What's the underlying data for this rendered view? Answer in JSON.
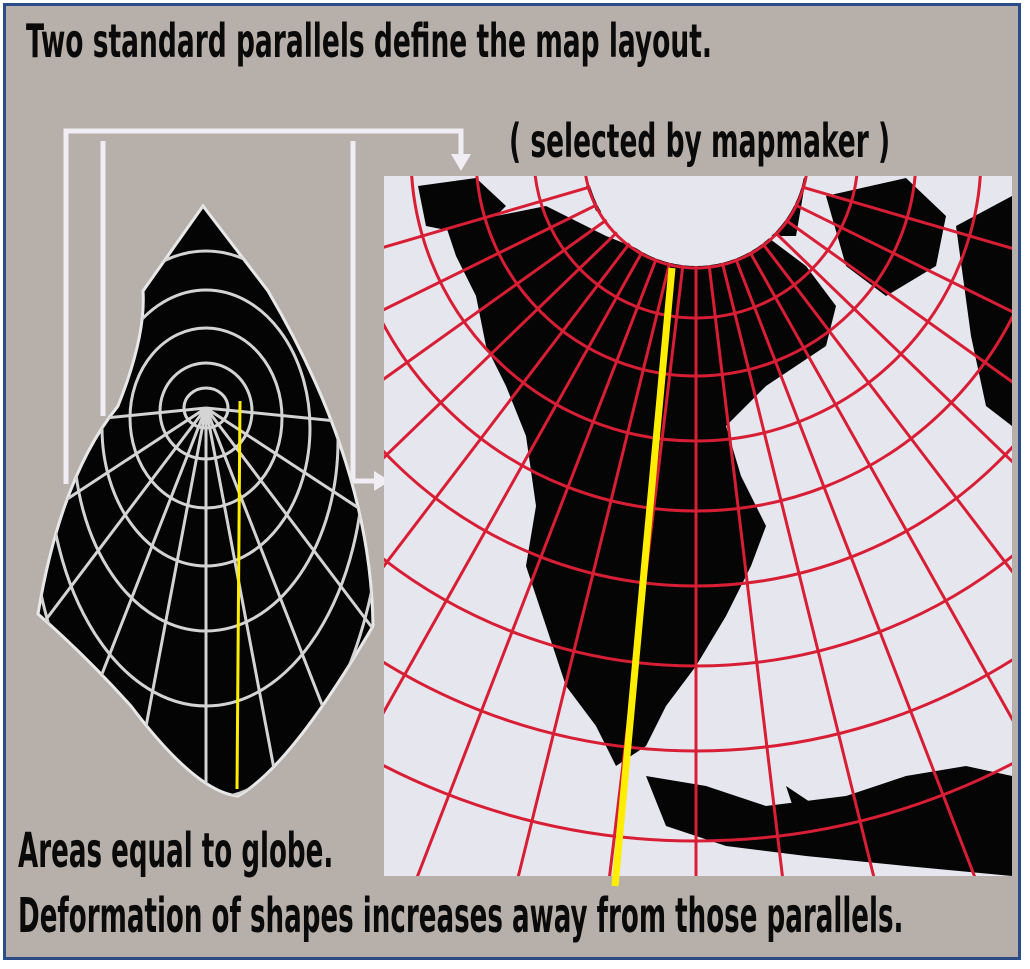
{
  "title": "Two standard parallels define the map layout.",
  "subtitle": "( selected by mapmaker )",
  "caption_areas": "Areas equal to globe.",
  "caption_deformation": "Deformation of shapes increases away from those parallels.",
  "colors": {
    "background": "#b7b0aa",
    "border": "#2b4c86",
    "map_background": "#e6e6ee",
    "land": "#050505",
    "graticule": "#d81e35",
    "globe_grid": "#d4d4d4",
    "connector": "#f0eef4",
    "central_meridian": "#ffee00"
  }
}
